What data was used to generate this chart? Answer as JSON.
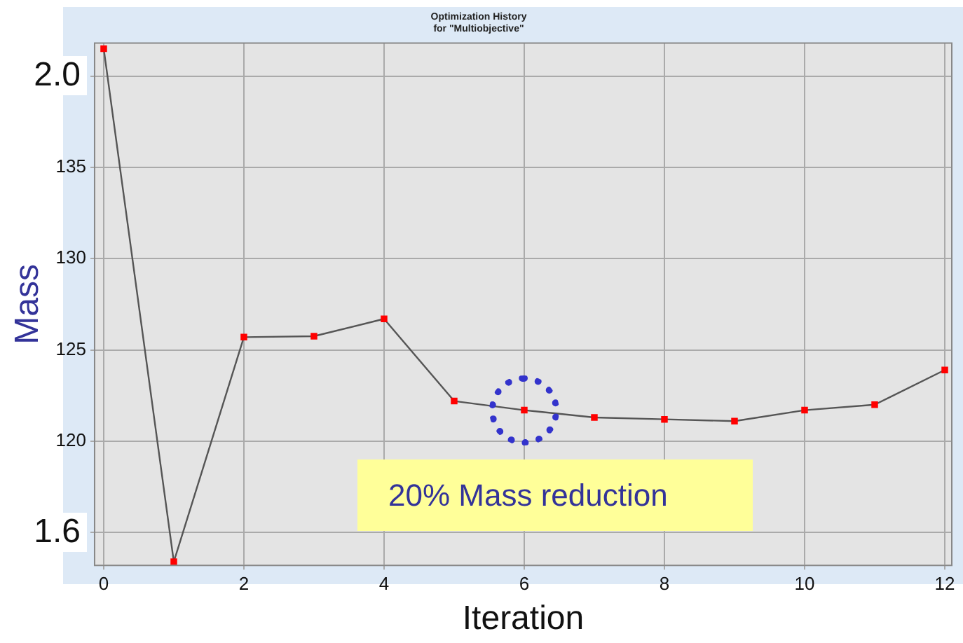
{
  "chart_data": {
    "type": "line",
    "title": [
      "Optimization History",
      "for \"Multiobjective\""
    ],
    "xlabel": "Iteration",
    "ylabel": "Mass",
    "x": [
      0,
      1,
      2,
      3,
      4,
      5,
      6,
      7,
      8,
      9,
      10,
      11,
      12
    ],
    "series": [
      {
        "color": "#ff0000",
        "values": [
          141.5,
          113.4,
          125.7,
          125.75,
          126.7,
          122.2,
          121.7,
          121.3,
          121.2,
          121.1,
          121.7,
          122.0,
          123.9
        ]
      }
    ],
    "xlim": [
      -0.13,
      12.1
    ],
    "xticks": [
      0,
      2,
      4,
      6,
      8,
      10,
      12
    ],
    "ylim": [
      113.2,
      141.8
    ],
    "yticks": [
      {
        "value": 115,
        "label": null
      },
      120,
      125,
      130,
      135,
      {
        "value": 140,
        "label": null
      }
    ],
    "annotations": [
      "1.6",
      "2.0",
      "20% Mass reduction"
    ],
    "grid": true,
    "legend": false,
    "marker": "square",
    "line_style": "solid"
  }
}
